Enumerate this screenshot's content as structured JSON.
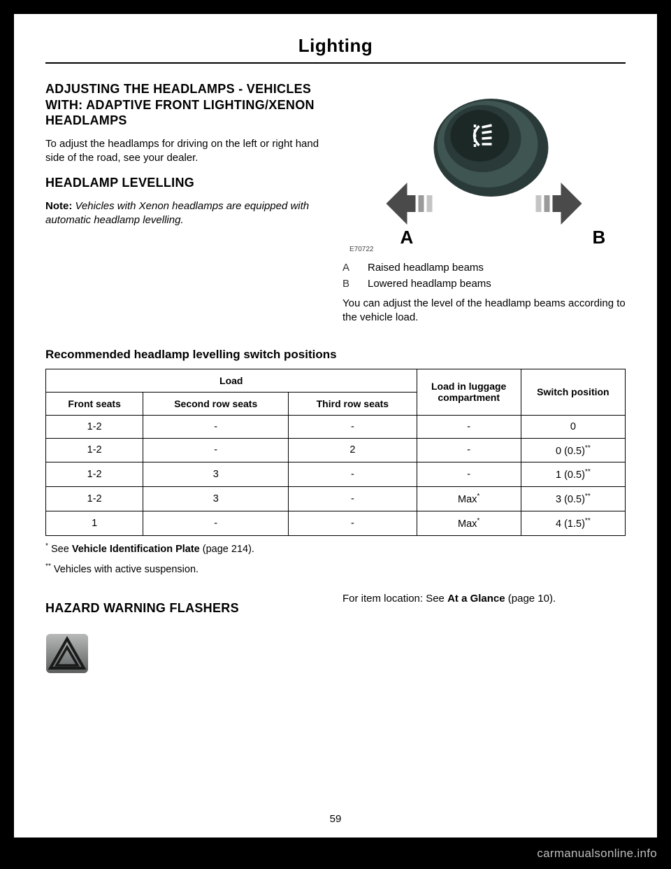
{
  "header": {
    "title": "Lighting"
  },
  "left": {
    "h_adj": "ADJUSTING THE HEADLAMPS - VEHICLES WITH: ADAPTIVE FRONT LIGHTING/XENON HEADLAMPS",
    "p_adj": "To adjust the headlamps for driving on the left or right hand side of the road, see your dealer.",
    "h_lvl": "HEADLAMP LEVELLING",
    "note_label": "Note:",
    "note_text": " Vehicles with Xenon headlamps are equipped with automatic headlamp levelling."
  },
  "right": {
    "fig_id": "E70722",
    "fig_label_a": "A",
    "fig_label_b": "B",
    "legend": [
      {
        "key": "A",
        "text": "Raised headlamp beams"
      },
      {
        "key": "B",
        "text": "Lowered headlamp beams"
      }
    ],
    "p_adjust": "You can adjust the level of the headlamp beams according to the vehicle load."
  },
  "table_heading": "Recommended headlamp levelling switch positions",
  "table": {
    "top_headers": {
      "load": "Load",
      "luggage": "Load in luggage compartment",
      "switch": "Switch position"
    },
    "sub_headers": [
      "Front seats",
      "Second row seats",
      "Third row seats"
    ],
    "rows": [
      {
        "c": [
          "1-2",
          "-",
          "-"
        ],
        "lug": "-",
        "lug_sup": "",
        "sw": "0",
        "sw_sup": ""
      },
      {
        "c": [
          "1-2",
          "-",
          "2"
        ],
        "lug": "-",
        "lug_sup": "",
        "sw": "0 (0.5)",
        "sw_sup": "**"
      },
      {
        "c": [
          "1-2",
          "3",
          "-"
        ],
        "lug": "-",
        "lug_sup": "",
        "sw": "1 (0.5)",
        "sw_sup": "**"
      },
      {
        "c": [
          "1-2",
          "3",
          "-"
        ],
        "lug": "Max",
        "lug_sup": "*",
        "sw": "3 (0.5)",
        "sw_sup": "**"
      },
      {
        "c": [
          "1",
          "-",
          "-"
        ],
        "lug": "Max",
        "lug_sup": "*",
        "sw": "4 (1.5)",
        "sw_sup": "**"
      }
    ]
  },
  "footnotes": {
    "f1_pre": "* See ",
    "f1_bold": "Vehicle Identification Plate",
    "f1_post": " (page 214).",
    "f2": "** Vehicles with active suspension."
  },
  "hazard": {
    "heading": "HAZARD WARNING FLASHERS",
    "loc_pre": "For item location:  See ",
    "loc_bold": "At a Glance",
    "loc_post": " (page 10)."
  },
  "page_number": "59",
  "footer": {
    "right": "carmanualsonline.info"
  },
  "colors": {
    "knob_dark": "#2a3a38",
    "knob_mid": "#3f5551",
    "arrow_fill": "#4a4a4a",
    "icon_btn_bg": "#6b6f6f",
    "icon_btn_gloss": "#9da0a0"
  }
}
